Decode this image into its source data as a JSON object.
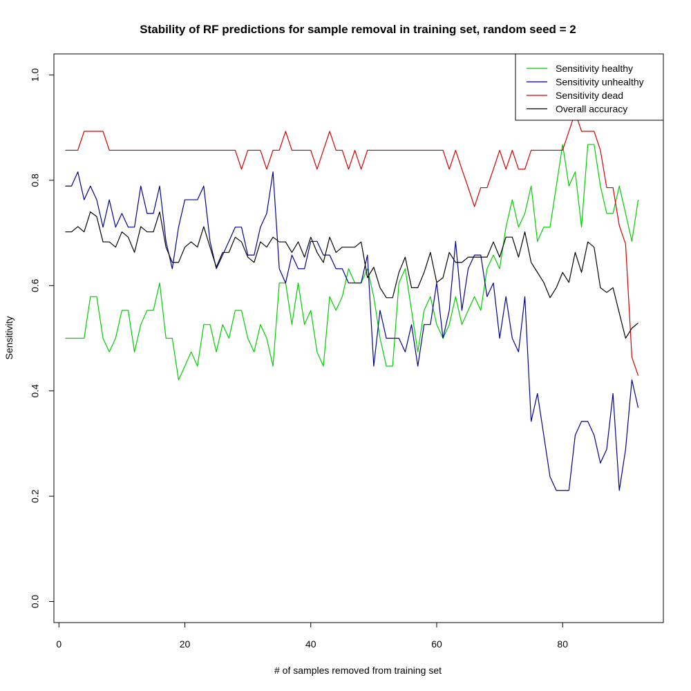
{
  "chart_data": {
    "type": "line",
    "title": "Stability of RF predictions for sample removal in training set, random seed = 2",
    "xlabel": "# of samples removed from training set",
    "ylabel": "Sensitivity",
    "xlim": [
      -0.8,
      96
    ],
    "ylim": [
      -0.04,
      1.04
    ],
    "xticks": [
      0,
      20,
      40,
      60,
      80
    ],
    "xtick_labels": [
      "0",
      "20",
      "40",
      "60",
      "80"
    ],
    "yticks": [
      0.0,
      0.2,
      0.4,
      0.6,
      0.8,
      1.0
    ],
    "ytick_labels": [
      "0.0",
      "0.2",
      "0.4",
      "0.6",
      "0.8",
      "1.0"
    ],
    "legend_position": "top-right",
    "grid": false,
    "x": [
      1,
      2,
      3,
      4,
      5,
      6,
      7,
      8,
      9,
      10,
      11,
      12,
      13,
      14,
      15,
      16,
      17,
      18,
      19,
      20,
      21,
      22,
      23,
      24,
      25,
      26,
      27,
      28,
      29,
      30,
      31,
      32,
      33,
      34,
      35,
      36,
      37,
      38,
      39,
      40,
      41,
      42,
      43,
      44,
      45,
      46,
      47,
      48,
      49,
      50,
      51,
      52,
      53,
      54,
      55,
      56,
      57,
      58,
      59,
      60,
      61,
      62,
      63,
      64,
      65,
      66,
      67,
      68,
      69,
      70,
      71,
      72,
      73,
      74,
      75,
      76,
      77,
      78,
      79,
      80,
      81,
      82,
      83,
      84,
      85,
      86,
      87,
      88,
      89,
      90,
      91,
      92
    ],
    "series": [
      {
        "name": "Sensitivity healthy",
        "color": "#00cc00",
        "values": [
          0.5,
          0.5,
          0.5,
          0.5,
          0.579,
          0.579,
          0.5,
          0.474,
          0.5,
          0.553,
          0.553,
          0.474,
          0.526,
          0.553,
          0.553,
          0.605,
          0.5,
          0.5,
          0.421,
          0.447,
          0.474,
          0.447,
          0.526,
          0.526,
          0.474,
          0.526,
          0.5,
          0.553,
          0.553,
          0.5,
          0.474,
          0.526,
          0.5,
          0.447,
          0.605,
          0.605,
          0.526,
          0.605,
          0.526,
          0.553,
          0.474,
          0.447,
          0.579,
          0.553,
          0.579,
          0.632,
          0.605,
          0.605,
          0.632,
          0.579,
          0.5,
          0.447,
          0.447,
          0.605,
          0.632,
          0.553,
          0.474,
          0.553,
          0.579,
          0.526,
          0.5,
          0.526,
          0.579,
          0.526,
          0.553,
          0.579,
          0.553,
          0.632,
          0.658,
          0.632,
          0.711,
          0.763,
          0.711,
          0.737,
          0.789,
          0.684,
          0.711,
          0.711,
          0.789,
          0.868,
          0.789,
          0.816,
          0.711,
          0.868,
          0.868,
          0.789,
          0.737,
          0.737,
          0.789,
          0.737,
          0.684,
          0.763
        ]
      },
      {
        "name": "Sensitivity unhealthy",
        "color": "#00008b",
        "values": [
          0.789,
          0.789,
          0.816,
          0.763,
          0.789,
          0.763,
          0.711,
          0.763,
          0.711,
          0.737,
          0.711,
          0.711,
          0.789,
          0.737,
          0.737,
          0.789,
          0.684,
          0.632,
          0.711,
          0.763,
          0.763,
          0.763,
          0.789,
          0.684,
          0.632,
          0.658,
          0.684,
          0.711,
          0.711,
          0.658,
          0.658,
          0.711,
          0.737,
          0.816,
          0.632,
          0.605,
          0.658,
          0.632,
          0.632,
          0.684,
          0.684,
          0.658,
          0.658,
          0.632,
          0.632,
          0.605,
          0.605,
          0.605,
          0.658,
          0.447,
          0.553,
          0.5,
          0.5,
          0.5,
          0.474,
          0.526,
          0.447,
          0.526,
          0.526,
          0.605,
          0.5,
          0.553,
          0.684,
          0.553,
          0.632,
          0.658,
          0.658,
          0.579,
          0.605,
          0.5,
          0.579,
          0.5,
          0.474,
          0.579,
          0.342,
          0.395,
          0.316,
          0.237,
          0.211,
          0.211,
          0.211,
          0.316,
          0.342,
          0.342,
          0.316,
          0.263,
          0.289,
          0.395,
          0.211,
          0.289,
          0.421,
          0.368
        ]
      },
      {
        "name": "Sensitivity dead",
        "color": "#cc0000",
        "values": [
          0.857,
          0.857,
          0.857,
          0.893,
          0.893,
          0.893,
          0.893,
          0.857,
          0.857,
          0.857,
          0.857,
          0.857,
          0.857,
          0.857,
          0.857,
          0.857,
          0.857,
          0.857,
          0.857,
          0.857,
          0.857,
          0.857,
          0.857,
          0.857,
          0.857,
          0.857,
          0.857,
          0.857,
          0.821,
          0.857,
          0.857,
          0.857,
          0.821,
          0.857,
          0.857,
          0.893,
          0.857,
          0.857,
          0.857,
          0.857,
          0.821,
          0.857,
          0.893,
          0.857,
          0.857,
          0.821,
          0.857,
          0.821,
          0.857,
          0.857,
          0.857,
          0.857,
          0.857,
          0.857,
          0.857,
          0.857,
          0.857,
          0.857,
          0.857,
          0.857,
          0.857,
          0.821,
          0.857,
          0.821,
          0.786,
          0.75,
          0.786,
          0.786,
          0.821,
          0.857,
          0.821,
          0.857,
          0.821,
          0.821,
          0.857,
          0.857,
          0.857,
          0.857,
          0.857,
          0.857,
          0.893,
          0.929,
          0.893,
          0.893,
          0.893,
          0.857,
          0.786,
          0.786,
          0.714,
          0.679,
          0.464,
          0.429
        ]
      },
      {
        "name": "Overall accuracy",
        "color": "#000000",
        "values": [
          0.702,
          0.702,
          0.712,
          0.702,
          0.74,
          0.731,
          0.683,
          0.683,
          0.673,
          0.702,
          0.692,
          0.663,
          0.712,
          0.702,
          0.702,
          0.74,
          0.673,
          0.644,
          0.644,
          0.673,
          0.683,
          0.673,
          0.712,
          0.673,
          0.635,
          0.663,
          0.663,
          0.692,
          0.683,
          0.654,
          0.644,
          0.683,
          0.673,
          0.692,
          0.683,
          0.683,
          0.663,
          0.683,
          0.654,
          0.692,
          0.663,
          0.644,
          0.692,
          0.663,
          0.673,
          0.673,
          0.673,
          0.683,
          0.615,
          0.635,
          0.596,
          0.577,
          0.577,
          0.625,
          0.654,
          0.596,
          0.596,
          0.625,
          0.663,
          0.606,
          0.615,
          0.663,
          0.644,
          0.644,
          0.654,
          0.654,
          0.654,
          0.654,
          0.683,
          0.654,
          0.692,
          0.692,
          0.654,
          0.702,
          0.644,
          0.625,
          0.606,
          0.577,
          0.596,
          0.625,
          0.606,
          0.663,
          0.625,
          0.683,
          0.673,
          0.596,
          0.587,
          0.596,
          0.548,
          0.5,
          0.519,
          0.529
        ]
      }
    ]
  }
}
